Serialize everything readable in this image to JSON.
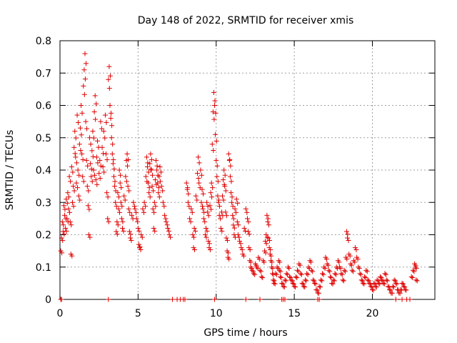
{
  "chart_data": {
    "type": "scatter",
    "title": "Day 148 of 2022, SRMTID for receiver xmis",
    "xlabel": "GPS time / hours",
    "ylabel": "SRMTID / TECUs",
    "xlim": [
      0,
      24
    ],
    "ylim": [
      0,
      0.8
    ],
    "x_ticks": [
      0,
      5,
      10,
      15,
      20
    ],
    "y_ticks": [
      0,
      0.1,
      0.2,
      0.3,
      0.4,
      0.5,
      0.6,
      0.7,
      0.8
    ],
    "x_tick_labels": [
      "0",
      "5",
      "10",
      "15",
      "20"
    ],
    "y_tick_labels": [
      "0",
      "0.1",
      "0.2",
      "0.3",
      "0.4",
      "0.5",
      "0.6",
      "0.7",
      "0.8"
    ],
    "grid": true,
    "marker": "+",
    "marker_color": "#e00000",
    "series": [
      {
        "name": "SRMTID",
        "points": [
          [
            0.05,
            0.15
          ],
          [
            0.1,
            0.19
          ],
          [
            0.15,
            0.24
          ],
          [
            0.2,
            0.21
          ],
          [
            0.25,
            0.29
          ],
          [
            0.3,
            0.26
          ],
          [
            0.35,
            0.22
          ],
          [
            0.4,
            0.31
          ],
          [
            0.45,
            0.25
          ],
          [
            0.5,
            0.33
          ],
          [
            0.55,
            0.28
          ],
          [
            0.6,
            0.38
          ],
          [
            0.65,
            0.24
          ],
          [
            0.7,
            0.14
          ],
          [
            0.75,
            0.41
          ],
          [
            0.8,
            0.3
          ],
          [
            0.85,
            0.35
          ],
          [
            0.9,
            0.47
          ],
          [
            0.95,
            0.52
          ],
          [
            1.0,
            0.44
          ],
          [
            1.05,
            0.36
          ],
          [
            1.1,
            0.57
          ],
          [
            1.15,
            0.4
          ],
          [
            1.2,
            0.32
          ],
          [
            1.25,
            0.48
          ],
          [
            1.3,
            0.53
          ],
          [
            1.35,
            0.6
          ],
          [
            1.4,
            0.45
          ],
          [
            1.45,
            0.38
          ],
          [
            1.5,
            0.66
          ],
          [
            1.55,
            0.71
          ],
          [
            1.6,
            0.76
          ],
          [
            1.65,
            0.55
          ],
          [
            1.7,
            0.43
          ],
          [
            1.75,
            0.35
          ],
          [
            1.8,
            0.29
          ],
          [
            1.85,
            0.2
          ],
          [
            1.9,
            0.5
          ],
          [
            1.95,
            0.42
          ],
          [
            2.0,
            0.38
          ],
          [
            2.05,
            0.46
          ],
          [
            2.1,
            0.52
          ],
          [
            2.15,
            0.4
          ],
          [
            2.2,
            0.58
          ],
          [
            2.25,
            0.63
          ],
          [
            2.3,
            0.37
          ],
          [
            2.35,
            0.44
          ],
          [
            2.4,
            0.49
          ],
          [
            2.5,
            0.39
          ],
          [
            2.55,
            0.43
          ],
          [
            2.6,
            0.55
          ],
          [
            2.7,
            0.47
          ],
          [
            2.75,
            0.41
          ],
          [
            2.8,
            0.52
          ],
          [
            2.9,
            0.57
          ],
          [
            2.95,
            0.45
          ],
          [
            3.0,
            0.33
          ],
          [
            3.05,
            0.25
          ],
          [
            3.1,
            0.68
          ],
          [
            3.15,
            0.72
          ],
          [
            3.2,
            0.6
          ],
          [
            3.25,
            0.56
          ],
          [
            3.3,
            0.5
          ],
          [
            3.35,
            0.45
          ],
          [
            3.4,
            0.42
          ],
          [
            3.45,
            0.38
          ],
          [
            3.5,
            0.35
          ],
          [
            3.55,
            0.3
          ],
          [
            3.6,
            0.21
          ],
          [
            3.65,
            0.24
          ],
          [
            3.7,
            0.33
          ],
          [
            3.75,
            0.28
          ],
          [
            3.8,
            0.4
          ],
          [
            3.85,
            0.36
          ],
          [
            3.9,
            0.3
          ],
          [
            3.95,
            0.25
          ],
          [
            4.0,
            0.22
          ],
          [
            4.1,
            0.32
          ],
          [
            4.2,
            0.38
          ],
          [
            4.25,
            0.43
          ],
          [
            4.3,
            0.45
          ],
          [
            4.35,
            0.35
          ],
          [
            4.4,
            0.28
          ],
          [
            4.45,
            0.21
          ],
          [
            4.5,
            0.19
          ],
          [
            4.6,
            0.26
          ],
          [
            4.7,
            0.3
          ],
          [
            4.8,
            0.28
          ],
          [
            4.9,
            0.25
          ],
          [
            5.0,
            0.22
          ],
          [
            5.05,
            0.17
          ],
          [
            5.1,
            0.16
          ],
          [
            5.2,
            0.2
          ],
          [
            5.3,
            0.28
          ],
          [
            5.4,
            0.3
          ],
          [
            5.5,
            0.38
          ],
          [
            5.55,
            0.44
          ],
          [
            5.6,
            0.41
          ],
          [
            5.65,
            0.36
          ],
          [
            5.7,
            0.33
          ],
          [
            5.75,
            0.42
          ],
          [
            5.8,
            0.45
          ],
          [
            5.85,
            0.4
          ],
          [
            5.9,
            0.35
          ],
          [
            5.95,
            0.28
          ],
          [
            6.0,
            0.22
          ],
          [
            6.05,
            0.3
          ],
          [
            6.1,
            0.37
          ],
          [
            6.15,
            0.43
          ],
          [
            6.2,
            0.4
          ],
          [
            6.25,
            0.36
          ],
          [
            6.3,
            0.33
          ],
          [
            6.35,
            0.38
          ],
          [
            6.4,
            0.41
          ],
          [
            6.5,
            0.35
          ],
          [
            6.6,
            0.3
          ],
          [
            6.7,
            0.26
          ],
          [
            6.8,
            0.24
          ],
          [
            6.9,
            0.22
          ],
          [
            7.0,
            0.2
          ],
          [
            8.1,
            0.36
          ],
          [
            8.15,
            0.34
          ],
          [
            8.2,
            0.3
          ],
          [
            8.3,
            0.25
          ],
          [
            8.4,
            0.28
          ],
          [
            8.5,
            0.2
          ],
          [
            8.55,
            0.16
          ],
          [
            8.6,
            0.22
          ],
          [
            8.7,
            0.32
          ],
          [
            8.8,
            0.39
          ],
          [
            8.85,
            0.44
          ],
          [
            8.9,
            0.36
          ],
          [
            9.0,
            0.4
          ],
          [
            9.05,
            0.3
          ],
          [
            9.1,
            0.34
          ],
          [
            9.15,
            0.28
          ],
          [
            9.2,
            0.25
          ],
          [
            9.3,
            0.2
          ],
          [
            9.35,
            0.22
          ],
          [
            9.4,
            0.3
          ],
          [
            9.45,
            0.27
          ],
          [
            9.5,
            0.18
          ],
          [
            9.55,
            0.16
          ],
          [
            9.6,
            0.29
          ],
          [
            9.65,
            0.33
          ],
          [
            9.7,
            0.36
          ],
          [
            9.75,
            0.48
          ],
          [
            9.8,
            0.58
          ],
          [
            9.85,
            0.64
          ],
          [
            9.9,
            0.6
          ],
          [
            9.95,
            0.51
          ],
          [
            10.0,
            0.43
          ],
          [
            10.05,
            0.38
          ],
          [
            10.1,
            0.32
          ],
          [
            10.15,
            0.3
          ],
          [
            10.2,
            0.26
          ],
          [
            10.3,
            0.22
          ],
          [
            10.35,
            0.27
          ],
          [
            10.4,
            0.32
          ],
          [
            10.45,
            0.37
          ],
          [
            10.5,
            0.4
          ],
          [
            10.55,
            0.35
          ],
          [
            10.6,
            0.27
          ],
          [
            10.65,
            0.19
          ],
          [
            10.7,
            0.15
          ],
          [
            10.75,
            0.13
          ],
          [
            10.8,
            0.45
          ],
          [
            10.85,
            0.43
          ],
          [
            10.9,
            0.38
          ],
          [
            10.95,
            0.33
          ],
          [
            11.0,
            0.3
          ],
          [
            11.05,
            0.26
          ],
          [
            11.1,
            0.23
          ],
          [
            11.15,
            0.2
          ],
          [
            11.2,
            0.28
          ],
          [
            11.3,
            0.31
          ],
          [
            11.35,
            0.24
          ],
          [
            11.4,
            0.2
          ],
          [
            11.5,
            0.18
          ],
          [
            11.6,
            0.16
          ],
          [
            11.7,
            0.14
          ],
          [
            11.8,
            0.22
          ],
          [
            11.9,
            0.28
          ],
          [
            12.0,
            0.25
          ],
          [
            12.05,
            0.21
          ],
          [
            12.1,
            0.16
          ],
          [
            12.15,
            0.12
          ],
          [
            12.2,
            0.1
          ],
          [
            12.3,
            0.09
          ],
          [
            12.4,
            0.08
          ],
          [
            12.5,
            0.11
          ],
          [
            12.6,
            0.1
          ],
          [
            12.7,
            0.13
          ],
          [
            12.8,
            0.09
          ],
          [
            12.9,
            0.07
          ],
          [
            13.0,
            0.12
          ],
          [
            13.1,
            0.15
          ],
          [
            13.15,
            0.18
          ],
          [
            13.2,
            0.2
          ],
          [
            13.25,
            0.26
          ],
          [
            13.3,
            0.24
          ],
          [
            13.35,
            0.19
          ],
          [
            13.4,
            0.16
          ],
          [
            13.45,
            0.14
          ],
          [
            13.5,
            0.12
          ],
          [
            13.55,
            0.1
          ],
          [
            13.6,
            0.08
          ],
          [
            13.65,
            0.06
          ],
          [
            13.7,
            0.05
          ],
          [
            13.8,
            0.08
          ],
          [
            13.9,
            0.1
          ],
          [
            14.0,
            0.12
          ],
          [
            14.05,
            0.09
          ],
          [
            14.1,
            0.07
          ],
          [
            14.2,
            0.05
          ],
          [
            14.3,
            0.04
          ],
          [
            14.4,
            0.06
          ],
          [
            14.5,
            0.08
          ],
          [
            14.6,
            0.1
          ],
          [
            14.7,
            0.07
          ],
          [
            14.8,
            0.06
          ],
          [
            14.9,
            0.05
          ],
          [
            15.0,
            0.04
          ],
          [
            15.1,
            0.07
          ],
          [
            15.2,
            0.09
          ],
          [
            15.3,
            0.11
          ],
          [
            15.4,
            0.08
          ],
          [
            15.5,
            0.05
          ],
          [
            15.6,
            0.04
          ],
          [
            15.7,
            0.06
          ],
          [
            15.8,
            0.08
          ],
          [
            15.9,
            0.1
          ],
          [
            16.0,
            0.12
          ],
          [
            16.1,
            0.09
          ],
          [
            16.2,
            0.06
          ],
          [
            16.3,
            0.05
          ],
          [
            16.4,
            0.03
          ],
          [
            16.5,
            0.02
          ],
          [
            16.6,
            0.04
          ],
          [
            16.7,
            0.06
          ],
          [
            16.8,
            0.08
          ],
          [
            16.9,
            0.1
          ],
          [
            17.0,
            0.13
          ],
          [
            17.1,
            0.11
          ],
          [
            17.2,
            0.09
          ],
          [
            17.3,
            0.07
          ],
          [
            17.4,
            0.05
          ],
          [
            17.5,
            0.06
          ],
          [
            17.6,
            0.08
          ],
          [
            17.7,
            0.1
          ],
          [
            17.8,
            0.12
          ],
          [
            17.9,
            0.1
          ],
          [
            18.0,
            0.08
          ],
          [
            18.1,
            0.06
          ],
          [
            18.2,
            0.09
          ],
          [
            18.3,
            0.13
          ],
          [
            18.35,
            0.21
          ],
          [
            18.4,
            0.19
          ],
          [
            18.5,
            0.14
          ],
          [
            18.6,
            0.11
          ],
          [
            18.7,
            0.09
          ],
          [
            18.8,
            0.12
          ],
          [
            18.9,
            0.16
          ],
          [
            19.0,
            0.13
          ],
          [
            19.1,
            0.1
          ],
          [
            19.2,
            0.08
          ],
          [
            19.3,
            0.06
          ],
          [
            19.4,
            0.05
          ],
          [
            19.5,
            0.07
          ],
          [
            19.6,
            0.09
          ],
          [
            19.7,
            0.06
          ],
          [
            19.8,
            0.05
          ],
          [
            19.9,
            0.04
          ],
          [
            20.0,
            0.03
          ],
          [
            20.1,
            0.05
          ],
          [
            20.2,
            0.04
          ],
          [
            20.3,
            0.06
          ],
          [
            20.4,
            0.05
          ],
          [
            20.5,
            0.07
          ],
          [
            20.6,
            0.06
          ],
          [
            20.7,
            0.05
          ],
          [
            20.8,
            0.08
          ],
          [
            20.9,
            0.06
          ],
          [
            21.0,
            0.04
          ],
          [
            21.1,
            0.03
          ],
          [
            21.2,
            0.02
          ],
          [
            21.3,
            0.04
          ],
          [
            21.4,
            0.06
          ],
          [
            21.5,
            0.05
          ],
          [
            21.6,
            0.03
          ],
          [
            21.7,
            0.02
          ],
          [
            21.8,
            0.03
          ],
          [
            21.9,
            0.05
          ],
          [
            22.0,
            0.04
          ],
          [
            22.1,
            0.03
          ],
          [
            22.5,
            0.07
          ],
          [
            22.6,
            0.09
          ],
          [
            22.7,
            0.11
          ],
          [
            22.75,
            0.1
          ],
          [
            22.8,
            0.06
          ]
        ],
        "zero_points": [
          0.05,
          0.1,
          3.1,
          7.2,
          7.5,
          7.7,
          7.9,
          8.0,
          9.9,
          11.9,
          12.8,
          14.2,
          14.3,
          14.4,
          16.5,
          16.6,
          21.5,
          21.9,
          22.2,
          22.4
        ]
      }
    ]
  }
}
